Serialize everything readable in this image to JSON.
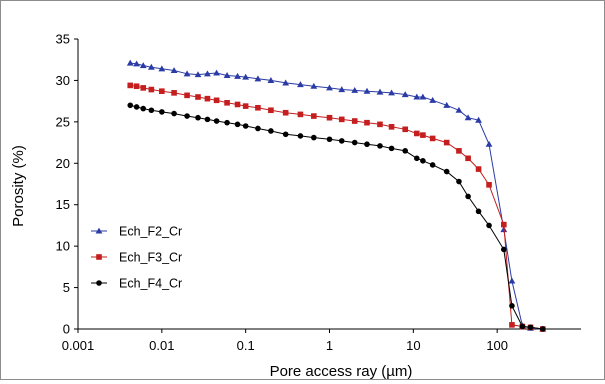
{
  "chart_data": {
    "type": "line",
    "title": "",
    "xlabel": "Pore access ray (µm)",
    "ylabel": "Porosity (%)",
    "x_scale": "log",
    "xlim": [
      0.001,
      1000
    ],
    "ylim": [
      0,
      35
    ],
    "x_ticks": [
      0.001,
      0.01,
      0.1,
      1,
      10,
      100
    ],
    "x_tick_labels": [
      "0.001",
      "0.01",
      "0.1",
      "1",
      "10",
      "100"
    ],
    "y_ticks": [
      0,
      5,
      10,
      15,
      20,
      25,
      30,
      35
    ],
    "y_tick_labels": [
      "0",
      "5",
      "10",
      "15",
      "20",
      "25",
      "30",
      "35"
    ],
    "grid": false,
    "legend_position": "center-left",
    "series": [
      {
        "name": "Ech_F2_Cr",
        "color": "#2b3ba5",
        "marker": "triangle",
        "x": [
          0.0042,
          0.005,
          0.006,
          0.0075,
          0.01,
          0.014,
          0.02,
          0.027,
          0.035,
          0.045,
          0.06,
          0.08,
          0.1,
          0.14,
          0.2,
          0.3,
          0.45,
          0.65,
          1,
          1.4,
          2,
          2.8,
          4,
          5.5,
          8,
          11,
          13,
          17,
          25,
          35,
          45,
          60,
          80,
          120,
          150,
          200,
          250,
          350
        ],
        "y": [
          32.1,
          32.0,
          31.8,
          31.6,
          31.4,
          31.2,
          30.8,
          30.7,
          30.8,
          30.9,
          30.6,
          30.5,
          30.4,
          30.2,
          30.0,
          29.7,
          29.5,
          29.3,
          29.1,
          28.9,
          28.8,
          28.7,
          28.6,
          28.5,
          28.3,
          28.0,
          28.0,
          27.6,
          27.0,
          26.4,
          25.5,
          25.2,
          22.3,
          12.0,
          5.8,
          0.4,
          0.1,
          0.0
        ]
      },
      {
        "name": "Ech_F3_Cr",
        "color": "#c41e1e",
        "marker": "square",
        "x": [
          0.0042,
          0.005,
          0.006,
          0.0075,
          0.01,
          0.014,
          0.02,
          0.027,
          0.035,
          0.045,
          0.06,
          0.08,
          0.1,
          0.14,
          0.2,
          0.3,
          0.45,
          0.65,
          1,
          1.4,
          2,
          2.8,
          4,
          5.5,
          8,
          11,
          13,
          17,
          25,
          35,
          45,
          60,
          80,
          120,
          150,
          200,
          250,
          350
        ],
        "y": [
          29.4,
          29.3,
          29.1,
          28.9,
          28.7,
          28.5,
          28.2,
          28.0,
          27.8,
          27.6,
          27.3,
          27.1,
          26.9,
          26.7,
          26.4,
          26.1,
          25.9,
          25.7,
          25.5,
          25.3,
          25.1,
          24.9,
          24.7,
          24.4,
          24.1,
          23.6,
          23.4,
          23.0,
          22.5,
          21.5,
          20.6,
          19.3,
          17.4,
          12.6,
          0.5,
          0.3,
          0.2,
          0.0
        ]
      },
      {
        "name": "Ech_F4_Cr",
        "color": "#000000",
        "marker": "circle",
        "x": [
          0.0042,
          0.005,
          0.006,
          0.0075,
          0.01,
          0.014,
          0.02,
          0.027,
          0.035,
          0.045,
          0.06,
          0.08,
          0.1,
          0.14,
          0.2,
          0.3,
          0.45,
          0.65,
          1,
          1.4,
          2,
          2.8,
          4,
          5.5,
          8,
          11,
          13,
          17,
          25,
          35,
          45,
          60,
          80,
          120,
          150,
          200,
          250,
          350
        ],
        "y": [
          27.0,
          26.8,
          26.6,
          26.4,
          26.2,
          26.0,
          25.7,
          25.5,
          25.3,
          25.1,
          24.9,
          24.7,
          24.5,
          24.2,
          23.9,
          23.5,
          23.3,
          23.1,
          22.9,
          22.7,
          22.5,
          22.3,
          22.1,
          21.8,
          21.5,
          20.6,
          20.3,
          19.8,
          19.0,
          17.8,
          16.0,
          14.2,
          12.5,
          9.6,
          2.8,
          0.3,
          0.2,
          0.0
        ]
      }
    ]
  }
}
